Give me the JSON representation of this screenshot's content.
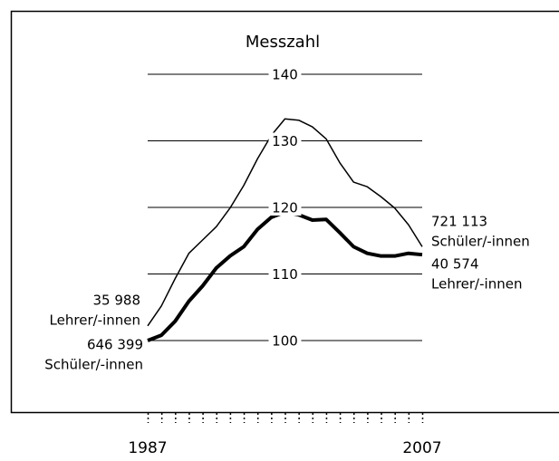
{
  "chart_data": {
    "type": "line",
    "title": "Messzahl",
    "x": [
      1987,
      1988,
      1989,
      1990,
      1991,
      1992,
      1993,
      1994,
      1995,
      1996,
      1997,
      1998,
      1999,
      2000,
      2001,
      2002,
      2003,
      2004,
      2005,
      2006,
      2007
    ],
    "xlim": [
      1987,
      2007
    ],
    "xticks": [
      1987,
      2007
    ],
    "ylim": [
      100,
      140
    ],
    "yticks": [
      100,
      110,
      120,
      130,
      140
    ],
    "grid": true,
    "series": [
      {
        "color": "#000000",
        "line_width": 1.5,
        "values": [
          102.2,
          105.2,
          109.3,
          113.1,
          115.1,
          117.1,
          119.9,
          123.3,
          127.3,
          130.8,
          133.3,
          133.1,
          132.1,
          130.3,
          126.7,
          123.8,
          123.1,
          121.6,
          119.9,
          117.4,
          114.1
        ]
      },
      {
        "color": "#000000",
        "line_width": 4,
        "values": [
          100,
          100.8,
          102.9,
          105.9,
          108.2,
          110.9,
          112.7,
          114.1,
          116.7,
          118.5,
          119.3,
          118.9,
          118.1,
          118.2,
          116.2,
          114.1,
          113.1,
          112.7,
          112.7,
          113.1,
          112.9
        ]
      }
    ],
    "annotations": [
      {
        "lines": [
          "35 988",
          "Lehrer/-innen"
        ]
      },
      {
        "lines": [
          "646 399",
          "Schüler/-innen"
        ]
      },
      {
        "lines": [
          "721 113",
          "Schüler/-innen"
        ]
      },
      {
        "lines": [
          "40 574",
          "Lehrer/-innen"
        ]
      }
    ]
  }
}
